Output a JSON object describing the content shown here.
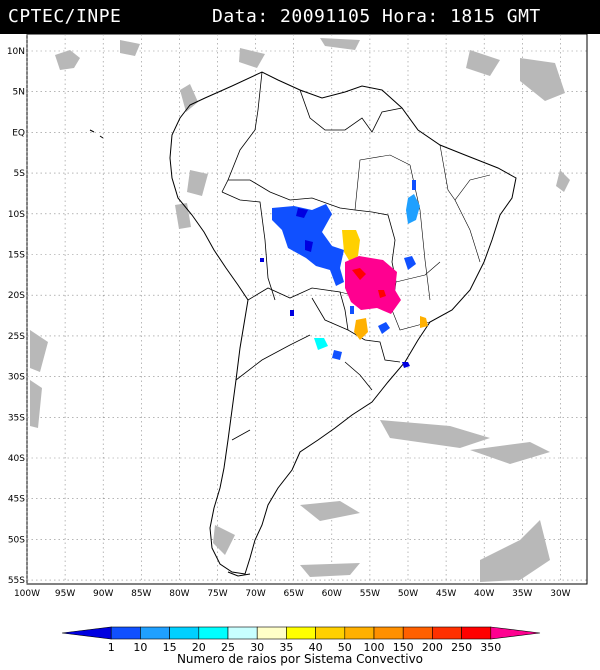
{
  "header": {
    "org": "CPTEC/INPE",
    "datetime": "Data: 20091105 Hora: 1815 GMT"
  },
  "map": {
    "lat_labels": [
      "10N",
      "5N",
      "EQ",
      "5S",
      "10S",
      "15S",
      "20S",
      "25S",
      "30S",
      "35S",
      "40S",
      "45S",
      "50S",
      "55S"
    ],
    "lon_labels": [
      "100W",
      "95W",
      "90W",
      "85W",
      "80W",
      "75W",
      "70W",
      "65W",
      "60W",
      "55W",
      "50W",
      "45W",
      "40W",
      "35W",
      "30W"
    ]
  },
  "legend": {
    "values": [
      "1",
      "10",
      "15",
      "20",
      "25",
      "30",
      "35",
      "40",
      "50",
      "100",
      "150",
      "200",
      "250",
      "350"
    ],
    "colors": [
      "#0000e0",
      "#1050ff",
      "#1fa0ff",
      "#00d0ff",
      "#00ffff",
      "#c8ffff",
      "#ffffc8",
      "#ffff00",
      "#ffd000",
      "#ffb000",
      "#ff9000",
      "#ff6000",
      "#ff3000",
      "#ff0000",
      "#ff0090"
    ],
    "caption": "Numero de raios por Sistema Convectivo"
  },
  "colors": {
    "coast": "#000000",
    "cloud": "#b8b8b8",
    "grid": "#8a8a8a"
  }
}
